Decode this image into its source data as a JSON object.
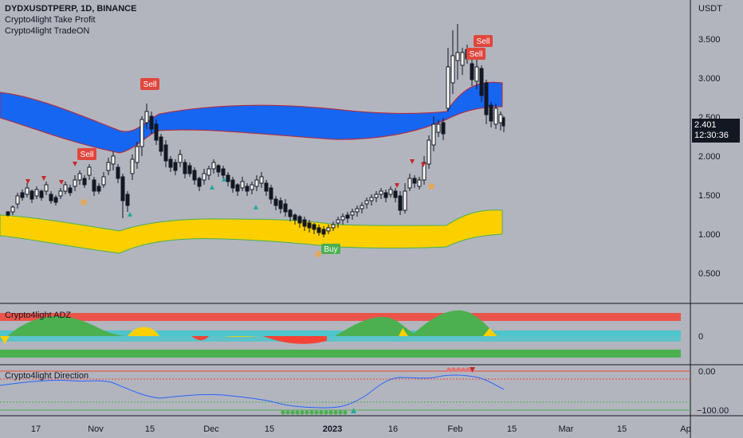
{
  "header": {
    "symbol_line": "DYDXUSDTPERP, 1D, BINANCE",
    "indicators": [
      "Crypto4light Take Profit",
      "Crypto4light TradeON"
    ]
  },
  "price_axis": {
    "currency": "USDT",
    "ticks": [
      "3.500",
      "3.000",
      "2.500",
      "2.000",
      "1.500",
      "1.000",
      "0.500"
    ],
    "current_price": "2.401",
    "countdown": "12:30:36"
  },
  "signals": {
    "sell_label": "Sell",
    "buy_label": "Buy"
  },
  "panes": {
    "adz": {
      "title": "Crypto4light ADZ",
      "ticks": [
        "0"
      ]
    },
    "direction": {
      "title": "Crypto4light Direction",
      "ticks": [
        "0.00",
        "−100.00"
      ]
    }
  },
  "time_axis": {
    "labels": [
      "17",
      "Nov",
      "15",
      "Dec",
      "15",
      "2023",
      "16",
      "Feb",
      "15",
      "Mar",
      "15",
      "Ap"
    ]
  },
  "colors": {
    "background": "#b2b5be",
    "upper_band": "#1766f2",
    "lower_band": "#fcd000",
    "sell": "#e0463c",
    "buy": "#4caf50",
    "adz_green": "#4caf50",
    "adz_red": "#f44336",
    "adz_cyan": "#4ec5cc",
    "direction_line": "#2962ff"
  }
}
